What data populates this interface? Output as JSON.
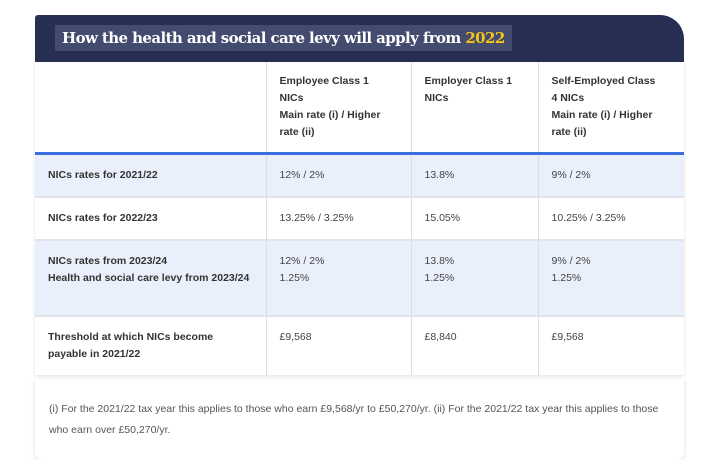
{
  "title": {
    "text": "How the health and social care levy will apply from ",
    "year": "2022"
  },
  "columns": [
    "",
    "Employee Class 1\nNICs\nMain rate (i) / Higher rate (ii)",
    "Employer Class 1\nNICs",
    "Self-Employed Class\n4 NICs\nMain rate (i) / Higher rate (ii)"
  ],
  "rows": [
    {
      "label": "NICs rates for 2021/22",
      "values": [
        "12% / 2%",
        "13.8%",
        "9% / 2%"
      ]
    },
    {
      "label": "NICs rates for 2022/23",
      "values": [
        "13.25% / 3.25%",
        "15.05%",
        "10.25% / 3.25%"
      ]
    },
    {
      "label": "NICs rates from 2023/24\nHealth and social care levy from 2023/24",
      "values": [
        "12% / 2%\n1.25%",
        "13.8%\n1.25%",
        "9% / 2%\n1.25%"
      ]
    },
    {
      "label": "Threshold at which NICs become payable in 2021/22",
      "values": [
        "£9,568",
        "£8,840",
        "£9,568"
      ]
    }
  ],
  "footnote": "(i) For the 2021/22 tax year this applies to those who earn £9,568/yr to £50,270/yr. (ii) For the 2021/22 tax year this applies to those who earn over £50,270/yr.",
  "colors": {
    "header": "#262f52",
    "accent": "#f5c518",
    "rule": "#3b6fe0",
    "row_alt": "#eaf0fb"
  }
}
